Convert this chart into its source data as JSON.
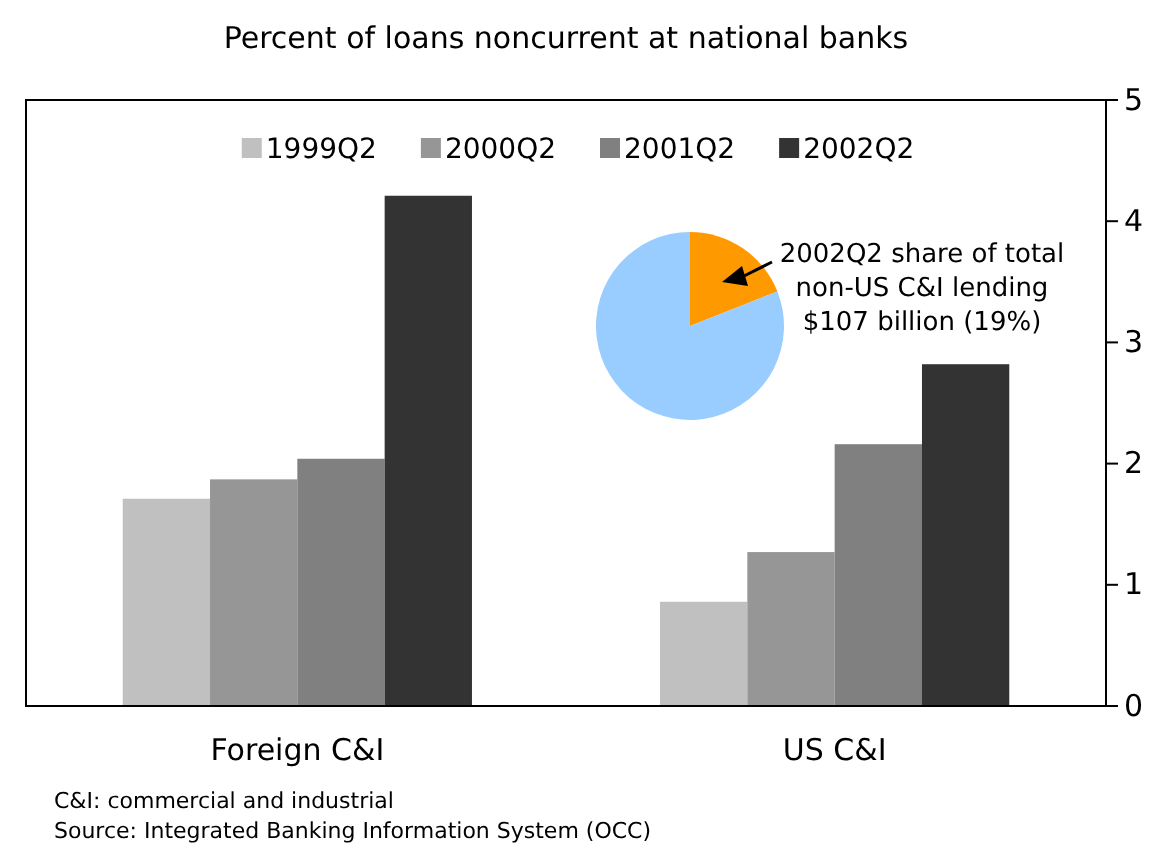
{
  "chart_data": [
    {
      "type": "bar",
      "title": "Percent of loans noncurrent at national banks",
      "categories": [
        "Foreign C&I",
        "US C&I"
      ],
      "series": [
        {
          "name": "1999Q2",
          "color": "#c0c0c0",
          "values": [
            1.71,
            0.86
          ]
        },
        {
          "name": "2000Q2",
          "color": "#969696",
          "values": [
            1.87,
            1.27
          ]
        },
        {
          "name": "2001Q2",
          "color": "#808080",
          "values": [
            2.04,
            2.16
          ]
        },
        {
          "name": "2002Q2",
          "color": "#333333",
          "values": [
            4.21,
            2.82
          ]
        }
      ],
      "ylim": [
        0,
        5
      ],
      "yticks": [
        0,
        1,
        2,
        3,
        4,
        5
      ],
      "grid": false,
      "legend": "top",
      "annotations": [
        "C&I: commercial and industrial",
        "Source: Integrated Banking Information System (OCC)"
      ]
    },
    {
      "type": "pie",
      "categories": [
        null,
        null
      ],
      "values": [
        19,
        81
      ],
      "colors": [
        "#ff9900",
        "#99ccff"
      ],
      "annotations": [
        "2002Q2 share of total non-US C&I lending $107 billion (19%)"
      ]
    }
  ]
}
